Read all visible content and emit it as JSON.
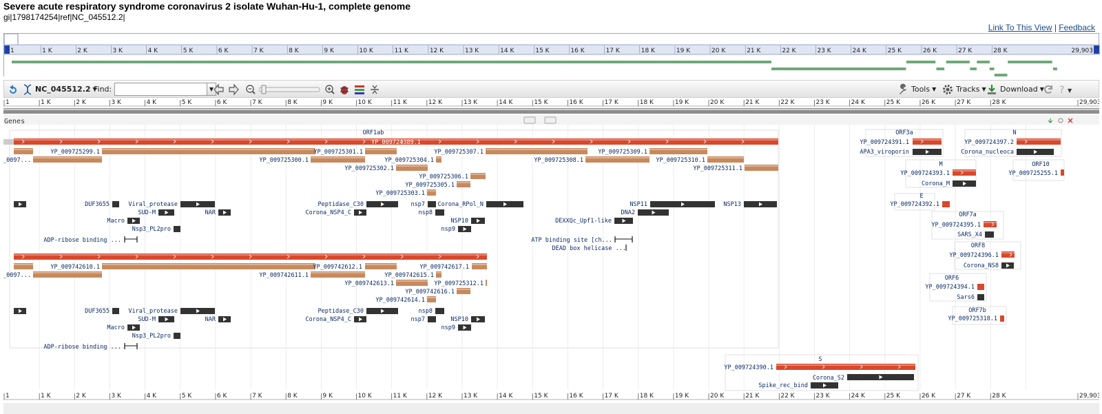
{
  "page": {
    "title": "Severe acute respiratory syndrome coronavirus 2 isolate Wuhan-Hu-1, complete genome",
    "accession": "gi|1798174254|ref|NC_045512.2|",
    "link_to_view": "Link To This View",
    "separator": "|",
    "feedback": "Feedback"
  },
  "toolbar": {
    "sequence": "NC_045512.2",
    "find_label": "Find:",
    "find_value": "",
    "tools": "Tools",
    "tracks": "Tracks",
    "download": "Download"
  },
  "ruler": {
    "labels": [
      "1",
      "1 K",
      "2 K",
      "3 K",
      "4 K",
      "5 K",
      "6 K",
      "7 K",
      "8 K",
      "9 K",
      "10 K",
      "11 K",
      "12 K",
      "13 K",
      "14 K",
      "15 K",
      "16 K",
      "17 K",
      "18 K",
      "19 K",
      "20 K",
      "21 K",
      "22 K",
      "23 K",
      "24 K",
      "25 K",
      "26 K",
      "27 K",
      "28 K",
      "29,903"
    ]
  },
  "panel": {
    "title": "Genes"
  },
  "colors": {
    "gene": "#d9482b",
    "cds": "#c8895c",
    "domain": "#333333",
    "overview": "#6fa878"
  },
  "labels": {
    "ORF1ab": "ORF1ab",
    "YP_009724389.1": "YP_009724389.1",
    "YP_009725299.1": "YP_009725299.1",
    "YP_0097a": "YP_0097...",
    "YP_009725301.1": "YP_009725301.1",
    "YP_009725307.1": "YP_009725307.1",
    "YP_009725309.1": "YP_009725309.1",
    "YP_009725300.1": "YP_009725300.1",
    "YP_009725304.1": "YP_009725304.1",
    "YP_009725308.1": "YP_009725308.1",
    "YP_009725310.1": "YP_009725310.1",
    "YP_009725302.1": "YP_009725302.1",
    "YP_009725311.1": "YP_009725311.1",
    "YP_009725306.1": "YP_009725306.1",
    "YP_009725305.1": "YP_009725305.1",
    "YP_009725303.1": "YP_009725303.1",
    "DUF3655a": "DUF3655",
    "Viral_protease_a": "Viral_protease",
    "Peptidase_C30a": "Peptidase_C30",
    "nsp7a": "nsp7",
    "Corona_RPol_N": "Corona_RPol_N",
    "NSP11": "NSP11",
    "NSP13": "NSP13",
    "SUD_Ma": "SUD-M",
    "NARa": "NAR",
    "Corona_NSP4_Ca": "Corona_NSP4_C",
    "nsp8a": "nsp8",
    "DNA2": "DNA2",
    "Macro_a": "Macro",
    "NSP10a": "NSP10",
    "DEXXQc": "DEXXQc_Upf1-like",
    "Nsp3_PL2pro_a": "Nsp3_PL2pro",
    "nsp9a": "nsp9",
    "ADP_a": "ADP-ribose binding ...",
    "ATP": "ATP binding site [ch...",
    "DEAD": "DEAD box helicase ...",
    "YP_009742610.1": "YP_009742610.1",
    "YP_009742612.1": "YP_009742612.1",
    "YP_009742617.1": "YP_009742617.1",
    "YP_0097b": "YP_0097...",
    "YP_009742611.1": "YP_009742611.1",
    "YP_009742615.1": "YP_009742615.1",
    "YP_009742613.1": "YP_009742613.1",
    "YP_009725312.1": "YP_009725312.1",
    "YP_009742616.1": "YP_009742616.1",
    "YP_009742614.1": "YP_009742614.1",
    "DUF3655b": "DUF3655",
    "Viral_protease_b": "Viral_protease",
    "Peptidase_C30b": "Peptidase_C30",
    "nsp8b": "nsp8",
    "SUD_Mb": "SUD-M",
    "NARb": "NAR",
    "Corona_NSP4_Cb": "Corona_NSP4_C",
    "nsp7b": "nsp7",
    "NSP10b": "NSP10",
    "Macro_b": "Macro",
    "nsp9b": "nsp9",
    "Nsp3_PL2pro_b": "Nsp3_PL2pro",
    "ADP_b": "ADP-ribose binding ...",
    "S": "S",
    "YP_009724390.1": "YP_009724390.1",
    "Corona_S2": "Corona_S2",
    "Spike_rec_bind": "Spike_rec_bind",
    "ORF3a": "ORF3a",
    "YP_009724391.1": "YP_009724391.1",
    "APA3_viroporin": "APA3_viroporin",
    "N": "N",
    "YP_009724397.2": "YP_009724397.2",
    "Corona_nucleoca": "Corona_nucleoca",
    "M": "M",
    "YP_009724393.1": "YP_009724393.1",
    "Corona_M": "Corona_M",
    "ORF10": "ORF10",
    "YP_009725255.1": "YP_009725255.1",
    "E": "E",
    "YP_009724392.1": "YP_009724392.1",
    "ORF7a": "ORF7a",
    "YP_009724395.1": "YP_009724395.1",
    "SARS_X4": "SARS_X4",
    "ORF8": "ORF8",
    "YP_009724396.1": "YP_009724396.1",
    "Corona_NS8": "Corona_NS8",
    "ORF6": "ORF6",
    "YP_009724394.1": "YP_009724394.1",
    "Sars6": "Sars6",
    "ORF7b": "ORF7b",
    "YP_009725318.1": "YP_009725318.1"
  }
}
